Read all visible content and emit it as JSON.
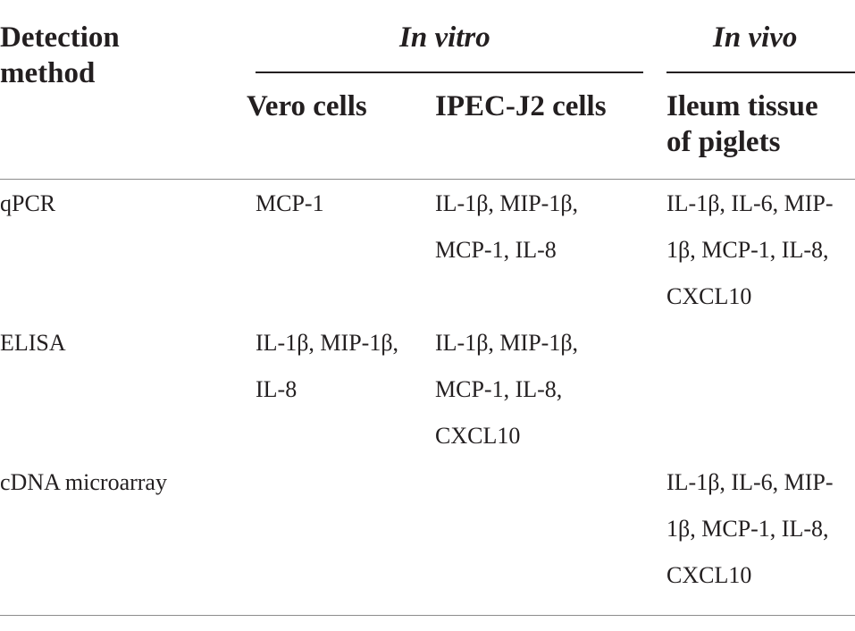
{
  "table": {
    "header": {
      "detection_method_line1": "Detection",
      "detection_method_line2": "method",
      "group_in_vitro": "In vitro",
      "group_in_vivo": "In vivo",
      "vero_cells": "Vero cells",
      "ipec_j2_cells": "IPEC-J2 cells",
      "ileum_line1": "Ileum tissue",
      "ileum_line2": "of piglets"
    },
    "rows": [
      {
        "method": "qPCR",
        "vero": [
          "MCP-1"
        ],
        "ipec": [
          "IL-1β, MIP-1β,",
          "MCP-1, IL-8"
        ],
        "ileum": [
          "IL-1β, IL-6, MIP-",
          "1β, MCP-1, IL-8,",
          "CXCL10"
        ]
      },
      {
        "method": "ELISA",
        "vero": [
          "IL-1β, MIP-1β,",
          "IL-8"
        ],
        "ipec": [
          "IL-1β, MIP-1β,",
          "MCP-1, IL-8,",
          "CXCL10"
        ],
        "ileum": []
      },
      {
        "method": "cDNA microarray",
        "vero": [],
        "ipec": [],
        "ileum": [
          "IL-1β, IL-6, MIP-",
          "1β, MCP-1, IL-8,",
          "CXCL10"
        ]
      }
    ]
  }
}
